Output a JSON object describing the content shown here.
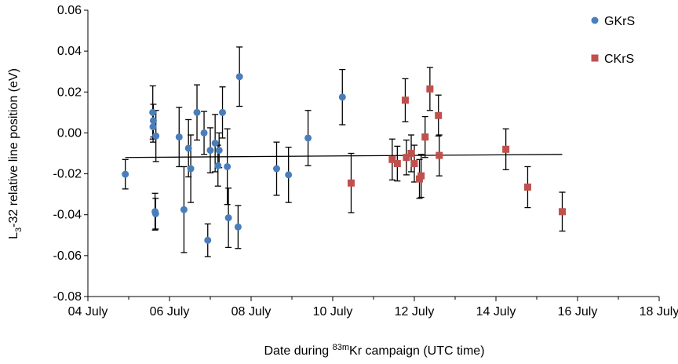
{
  "chart_data": {
    "type": "scatter",
    "xlabel": {
      "prefix": "Date during ",
      "sup": "83m",
      "suffix": "Kr campaign (UTC time)"
    },
    "ylabel": {
      "prefix": "L",
      "sub": "3",
      "suffix": "-32 relative line position (eV)"
    },
    "xlim": [
      "2018-07-04",
      "2018-07-18"
    ],
    "ylim": [
      -0.08,
      0.06
    ],
    "x_ticks": [
      "04 July",
      "06 July",
      "08 July",
      "10 July",
      "12 July",
      "14 July",
      "16 July",
      "18 July"
    ],
    "y_ticks": [
      "0.06",
      "0.04",
      "0.02",
      "0.00",
      "-0.02",
      "-0.04",
      "-0.06",
      "-0.08"
    ],
    "legend_position": "top-right",
    "grid": false,
    "series": [
      {
        "name": "GKrS",
        "marker": "circle",
        "color": "#4a7ebb",
        "points": [
          {
            "x": "2018-07-04T22:00",
            "y": -0.0202,
            "err": 0.0072
          },
          {
            "x": "2018-07-05T14:10",
            "y": 0.01,
            "err": 0.013
          },
          {
            "x": "2018-07-05T14:20",
            "y": 0.003,
            "err": 0.0075
          },
          {
            "x": "2018-07-05T14:30",
            "y": 0.006,
            "err": 0.008
          },
          {
            "x": "2018-07-05T15:30",
            "y": -0.0385,
            "err": 0.009
          },
          {
            "x": "2018-07-05T15:50",
            "y": -0.0395,
            "err": 0.0075
          },
          {
            "x": "2018-07-05T16:00",
            "y": -0.0015,
            "err": 0.0125
          },
          {
            "x": "2018-07-06T05:40",
            "y": -0.002,
            "err": 0.0145
          },
          {
            "x": "2018-07-06T08:30",
            "y": -0.0375,
            "err": 0.021
          },
          {
            "x": "2018-07-06T11:10",
            "y": -0.0075,
            "err": 0.014
          },
          {
            "x": "2018-07-06T12:30",
            "y": -0.0175,
            "err": 0.0165
          },
          {
            "x": "2018-07-06T16:10",
            "y": 0.01,
            "err": 0.0135
          },
          {
            "x": "2018-07-06T20:20",
            "y": 0.0,
            "err": 0.0105
          },
          {
            "x": "2018-07-06T22:30",
            "y": -0.0525,
            "err": 0.008
          },
          {
            "x": "2018-07-07T00:00",
            "y": -0.0085,
            "err": 0.011
          },
          {
            "x": "2018-07-07T02:50",
            "y": -0.005,
            "err": 0.014
          },
          {
            "x": "2018-07-07T04:30",
            "y": -0.016,
            "err": 0.01
          },
          {
            "x": "2018-07-07T05:10",
            "y": -0.0085,
            "err": 0.0085
          },
          {
            "x": "2018-07-07T07:10",
            "y": 0.01,
            "err": 0.0125
          },
          {
            "x": "2018-07-07T10:00",
            "y": -0.0165,
            "err": 0.0185
          },
          {
            "x": "2018-07-07T10:40",
            "y": -0.0415,
            "err": 0.0145
          },
          {
            "x": "2018-07-07T16:20",
            "y": -0.046,
            "err": 0.0105
          },
          {
            "x": "2018-07-07T17:10",
            "y": 0.0275,
            "err": 0.0145
          },
          {
            "x": "2018-07-08T15:00",
            "y": -0.0175,
            "err": 0.013
          },
          {
            "x": "2018-07-08T22:00",
            "y": -0.0205,
            "err": 0.0135
          },
          {
            "x": "2018-07-09T09:30",
            "y": -0.0025,
            "err": 0.0135
          },
          {
            "x": "2018-07-10T05:40",
            "y": 0.0175,
            "err": 0.0135
          }
        ]
      },
      {
        "name": "CKrS",
        "marker": "square",
        "color": "#c0504d",
        "points": [
          {
            "x": "2018-07-10T10:50",
            "y": -0.0245,
            "err": 0.0145
          },
          {
            "x": "2018-07-11T11:00",
            "y": -0.013,
            "err": 0.01
          },
          {
            "x": "2018-07-11T14:00",
            "y": -0.015,
            "err": 0.0085
          },
          {
            "x": "2018-07-11T18:40",
            "y": 0.016,
            "err": 0.0105
          },
          {
            "x": "2018-07-11T19:20",
            "y": -0.012,
            "err": 0.0085
          },
          {
            "x": "2018-07-11T22:10",
            "y": -0.01,
            "err": 0.009
          },
          {
            "x": "2018-07-12T00:00",
            "y": -0.015,
            "err": 0.009
          },
          {
            "x": "2018-07-12T03:00",
            "y": -0.0225,
            "err": 0.0095
          },
          {
            "x": "2018-07-12T04:00",
            "y": -0.021,
            "err": 0.0105
          },
          {
            "x": "2018-07-12T06:20",
            "y": -0.002,
            "err": 0.01
          },
          {
            "x": "2018-07-12T09:10",
            "y": 0.0215,
            "err": 0.0105
          },
          {
            "x": "2018-07-12T14:10",
            "y": 0.0085,
            "err": 0.01
          },
          {
            "x": "2018-07-12T14:40",
            "y": -0.011,
            "err": 0.01
          },
          {
            "x": "2018-07-14T05:50",
            "y": -0.008,
            "err": 0.01
          },
          {
            "x": "2018-07-14T18:40",
            "y": -0.0265,
            "err": 0.01
          },
          {
            "x": "2018-07-15T15:00",
            "y": -0.0385,
            "err": 0.0095
          }
        ]
      }
    ],
    "trendline": {
      "x": [
        "2018-07-04T22:00",
        "2018-07-15T15:00"
      ],
      "y": [
        -0.012,
        -0.0105
      ],
      "color": "#000000"
    }
  }
}
